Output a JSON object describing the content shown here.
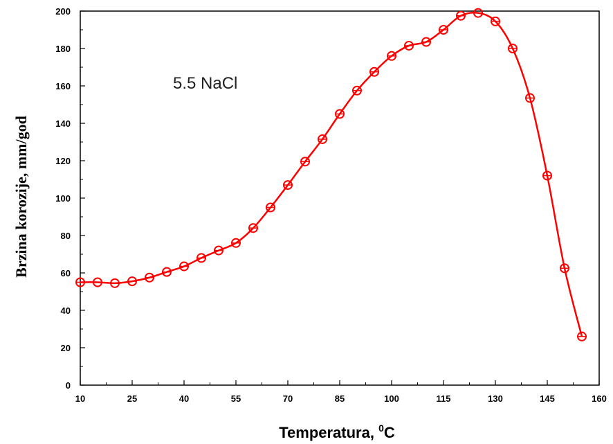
{
  "chart_data": {
    "type": "line",
    "title": "",
    "annotation": "5.5 NaCl",
    "xlabel": "Temperatura, ",
    "xlabel_sup": "0",
    "xlabel_unit": "C",
    "ylabel": "Brzina korozije,  mm/god",
    "xlim": [
      10,
      160
    ],
    "ylim": [
      0,
      200
    ],
    "x_ticks": [
      10,
      25,
      40,
      55,
      70,
      85,
      100,
      115,
      130,
      145,
      160
    ],
    "y_ticks": [
      0,
      20,
      40,
      60,
      80,
      100,
      120,
      140,
      160,
      180,
      200
    ],
    "grid": false,
    "line_color": "#ff0000",
    "series": [
      {
        "x": [
          10,
          15,
          20,
          25,
          30,
          35,
          40,
          45,
          50,
          55,
          60,
          65,
          70,
          75,
          80,
          85,
          90,
          95,
          100,
          105,
          110,
          115,
          120,
          125,
          130,
          135,
          140,
          145,
          150,
          155
        ],
        "y": [
          55,
          55,
          54.5,
          55.5,
          57.5,
          60.5,
          63.5,
          68,
          72,
          76,
          84,
          95,
          107,
          119.5,
          131.5,
          145,
          157.5,
          167.5,
          176,
          181.5,
          183.5,
          190,
          197.5,
          199,
          194.5,
          180,
          153.5,
          112,
          62.5,
          26
        ]
      }
    ]
  }
}
